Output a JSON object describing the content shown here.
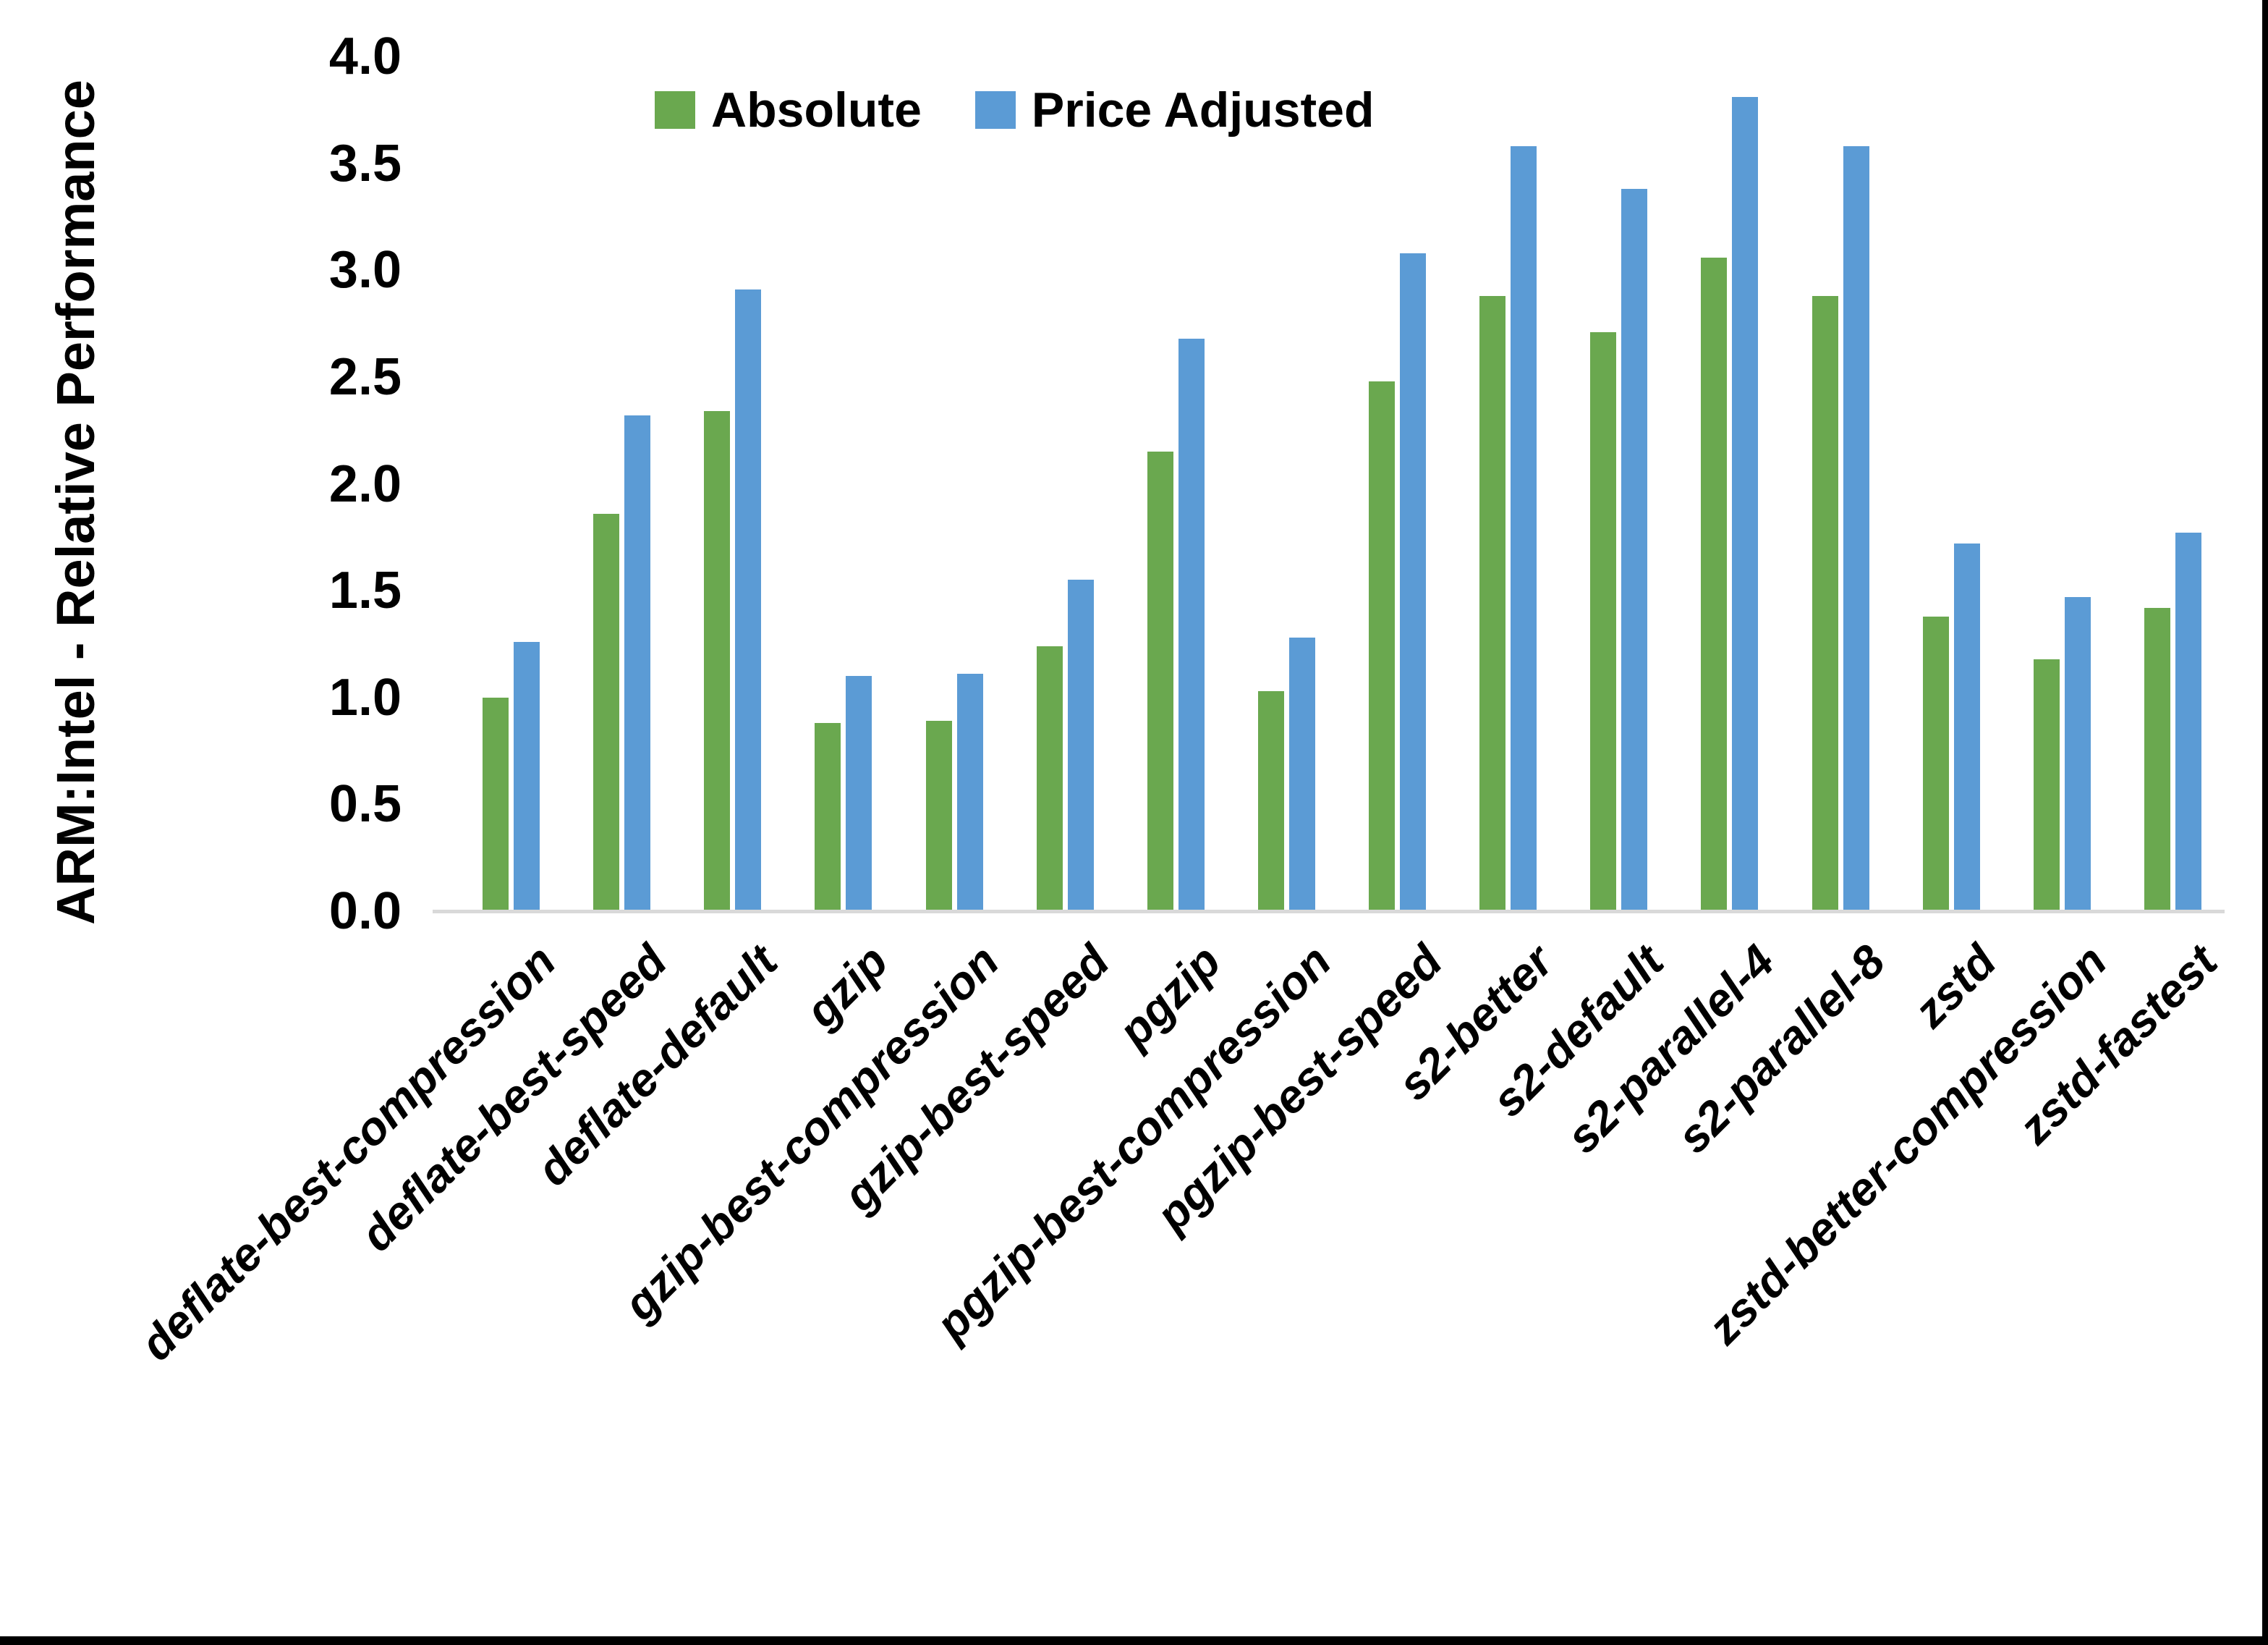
{
  "figure": {
    "background": "#ffffff",
    "edge_border_color": "#000000",
    "axis_line_color": "#d9d9d9"
  },
  "chart_data": {
    "type": "bar",
    "title": "",
    "xlabel": "",
    "ylabel": "ARM:Intel - Relative Performance",
    "ylim": [
      0.0,
      4.0
    ],
    "y_ticks": [
      "0.0",
      "0.5",
      "1.0",
      "1.5",
      "2.0",
      "2.5",
      "3.0",
      "3.5",
      "4.0"
    ],
    "grid": false,
    "legend_position": "top-center",
    "categories": [
      "deflate-best-compression",
      "deflate-best-speed",
      "deflate-default",
      "gzip",
      "gzip-best-compression",
      "gzip-best-speed",
      "pgzip",
      "pgzip-best-compression",
      "pgzip-best-speed",
      "s2-better",
      "s2-default",
      "s2-parallel-4",
      "s2-parallel-8",
      "zstd",
      "zstd-better-compression",
      "zstd-fastest"
    ],
    "series": [
      {
        "name": "Absolute",
        "color": "#6aa84f",
        "values": [
          1.0,
          1.86,
          2.34,
          0.88,
          0.89,
          1.24,
          2.15,
          1.03,
          2.48,
          2.88,
          2.71,
          3.06,
          2.88,
          1.38,
          1.18,
          1.42
        ]
      },
      {
        "name": "Price Adjusted",
        "color": "#5b9bd5",
        "values": [
          1.26,
          2.32,
          2.91,
          1.1,
          1.11,
          1.55,
          2.68,
          1.28,
          3.08,
          3.58,
          3.38,
          3.81,
          3.58,
          1.72,
          1.47,
          1.77
        ]
      }
    ]
  }
}
